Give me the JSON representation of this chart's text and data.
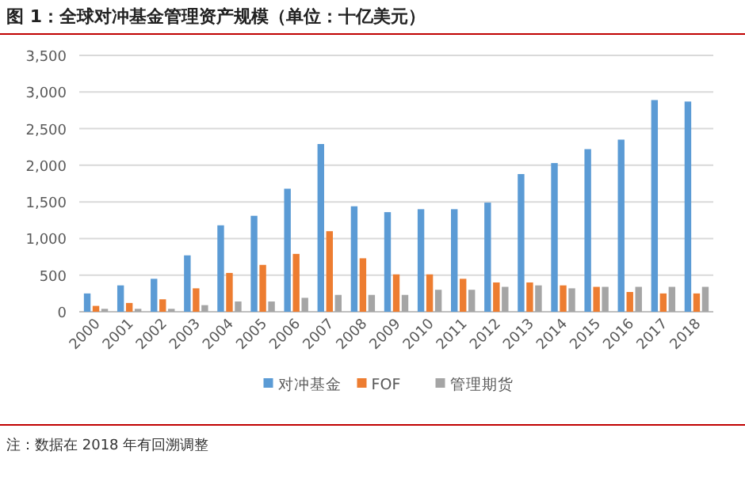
{
  "chart_data": {
    "type": "bar",
    "title": "图 1：全球对冲基金管理资产规模（单位：十亿美元）",
    "categories": [
      "2000",
      "2001",
      "2002",
      "2003",
      "2004",
      "2005",
      "2006",
      "2007",
      "2008",
      "2009",
      "2010",
      "2011",
      "2012",
      "2013",
      "2014",
      "2015",
      "2016",
      "2017",
      "2018"
    ],
    "series": [
      {
        "name": "对冲基金",
        "color": "#5b9bd5",
        "values": [
          250,
          360,
          450,
          770,
          1180,
          1310,
          1680,
          2290,
          1440,
          1360,
          1400,
          1400,
          1490,
          1880,
          2030,
          2220,
          2350,
          2890,
          2870
        ]
      },
      {
        "name": "FOF",
        "color": "#ed7d31",
        "values": [
          80,
          120,
          170,
          320,
          530,
          640,
          790,
          1100,
          730,
          510,
          510,
          450,
          400,
          400,
          360,
          340,
          270,
          250,
          250
        ]
      },
      {
        "name": "管理期货",
        "color": "#a5a5a5",
        "values": [
          40,
          40,
          40,
          90,
          140,
          140,
          190,
          230,
          230,
          230,
          300,
          300,
          340,
          360,
          320,
          340,
          340,
          340,
          340
        ]
      }
    ],
    "ylim": [
      0,
      3500
    ],
    "yticks": [
      {
        "value": 0,
        "label": "0"
      },
      {
        "value": 500,
        "label": "500"
      },
      {
        "value": 1000,
        "label": "1,000"
      },
      {
        "value": 1500,
        "label": "1,500"
      },
      {
        "value": 2000,
        "label": "2,000"
      },
      {
        "value": 2500,
        "label": "2,500"
      },
      {
        "value": 3000,
        "label": "3,000"
      },
      {
        "value": 3500,
        "label": "3,500"
      }
    ],
    "grid": "y",
    "legend": "bottom",
    "annotations": [
      "注：数据在 2018 年有回溯调整"
    ]
  }
}
